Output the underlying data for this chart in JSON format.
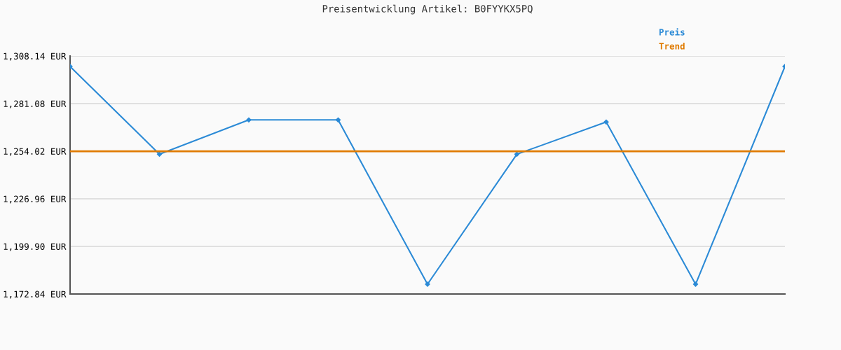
{
  "chart_data": {
    "type": "line",
    "title": "Preisentwicklung Artikel: B0FYYKX5PQ",
    "categories": [
      null,
      null,
      null,
      null,
      null,
      null,
      null,
      null,
      null
    ],
    "series": [
      {
        "name": "Preis",
        "color": "#2b8ad6",
        "values": [
          1302.2,
          1252.3,
          1271.8,
          1271.8,
          1178.4,
          1252.3,
          1270.6,
          1178.4,
          1302.2
        ],
        "marker": "diamond"
      },
      {
        "name": "Trend",
        "color": "#e07b00",
        "values": [
          1254.0,
          1254.0,
          1254.0,
          1254.0,
          1254.0,
          1254.0,
          1254.0,
          1254.0,
          1254.0
        ],
        "marker": "none"
      }
    ],
    "ylim": [
      1172.84,
      1308.14
    ],
    "yticks": [
      {
        "value": 1172.84,
        "label": "1,172.84 EUR"
      },
      {
        "value": 1199.9,
        "label": "1,199.90 EUR"
      },
      {
        "value": 1226.96,
        "label": "1,226.96 EUR"
      },
      {
        "value": 1254.02,
        "label": "1,254.02 EUR"
      },
      {
        "value": 1281.08,
        "label": "1,281.08 EUR"
      },
      {
        "value": 1308.14,
        "label": "1,308.14 EUR"
      }
    ],
    "grid": "y",
    "legend": "top right"
  }
}
